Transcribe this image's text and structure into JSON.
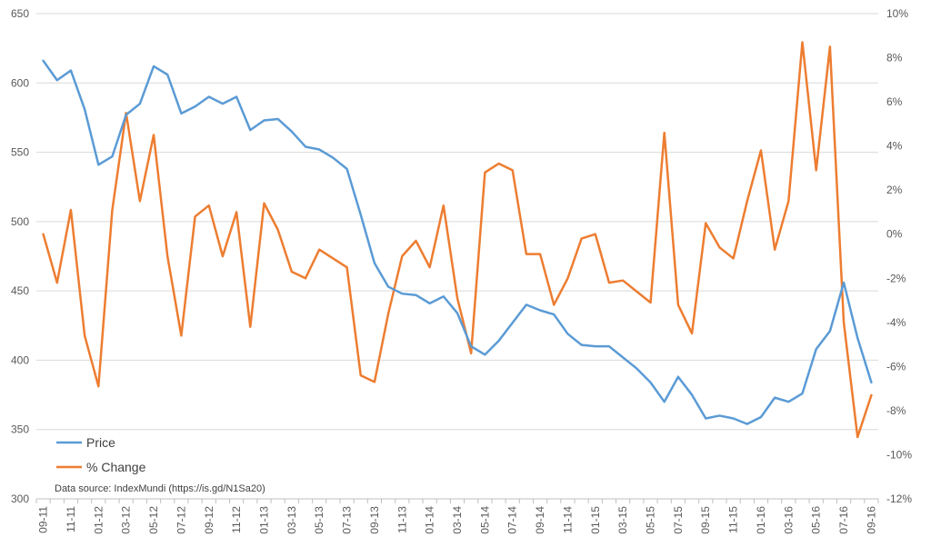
{
  "chart_data": {
    "type": "line",
    "title": "",
    "xlabel": "",
    "ylabel": "",
    "y2label": "",
    "ylim": [
      300,
      650
    ],
    "yticks": [
      300,
      350,
      400,
      450,
      500,
      550,
      600,
      650
    ],
    "y2lim": [
      -12,
      10
    ],
    "y2ticks": [
      "-12%",
      "-10%",
      "-8%",
      "-6%",
      "-4%",
      "-2%",
      "0%",
      "2%",
      "4%",
      "6%",
      "8%",
      "10%"
    ],
    "y2tick_values": [
      -12,
      -10,
      -8,
      -6,
      -4,
      -2,
      0,
      2,
      4,
      6,
      8,
      10
    ],
    "grid": "horizontal",
    "legend_position": "bottom-left",
    "colors": {
      "price": "#5b9bd5",
      "change": "#ed7d31",
      "grid": "#d9d9d9",
      "axis": "#bfbfbf"
    },
    "x": [
      "09-11",
      "10-11",
      "11-11",
      "12-11",
      "01-12",
      "02-12",
      "03-12",
      "04-12",
      "05-12",
      "06-12",
      "07-12",
      "08-12",
      "09-12",
      "10-12",
      "11-12",
      "12-12",
      "01-13",
      "02-13",
      "03-13",
      "04-13",
      "05-13",
      "06-13",
      "07-13",
      "08-13",
      "09-13",
      "10-13",
      "11-13",
      "12-13",
      "01-14",
      "02-14",
      "03-14",
      "04-14",
      "05-14",
      "06-14",
      "07-14",
      "08-14",
      "09-14",
      "10-14",
      "11-14",
      "12-14",
      "01-15",
      "02-15",
      "03-15",
      "04-15",
      "05-15",
      "06-15",
      "07-15",
      "08-15",
      "09-15",
      "10-15",
      "11-15",
      "12-15",
      "01-16",
      "02-16",
      "03-16",
      "04-16",
      "05-16",
      "06-16",
      "07-16",
      "08-16",
      "09-16"
    ],
    "xtick_labels": [
      "09-11",
      "11-11",
      "01-12",
      "03-12",
      "05-12",
      "07-12",
      "09-12",
      "11-12",
      "01-13",
      "03-13",
      "05-13",
      "07-13",
      "09-13",
      "11-13",
      "01-14",
      "03-14",
      "05-14",
      "07-14",
      "09-14",
      "11-14",
      "01-15",
      "03-15",
      "05-15",
      "07-15",
      "09-15",
      "11-15",
      "01-16",
      "03-16",
      "05-16",
      "07-16",
      "09-16"
    ],
    "series": [
      {
        "name": "Price",
        "axis": "left",
        "values": [
          616,
          602,
          609,
          581,
          541,
          547,
          577,
          585,
          612,
          606,
          578,
          583,
          590,
          585,
          590,
          566,
          573,
          574,
          565,
          554,
          552,
          546,
          538,
          505,
          470,
          453,
          448,
          447,
          441,
          446,
          434,
          410,
          404,
          414,
          427,
          440,
          436,
          433,
          419,
          411,
          410,
          410,
          402,
          394,
          384,
          370,
          388,
          375,
          358,
          360,
          358,
          354,
          359,
          373,
          370,
          376,
          408,
          421,
          456,
          416,
          384
        ]
      },
      {
        "name": "% Change",
        "axis": "right",
        "values": [
          0,
          -2.2,
          1.1,
          -4.6,
          -6.9,
          1.1,
          5.5,
          1.5,
          4.5,
          -1.0,
          -4.6,
          0.8,
          1.3,
          -1.0,
          1.0,
          -4.2,
          1.4,
          0.2,
          -1.7,
          -2.0,
          -0.7,
          -1.1,
          -1.5,
          -6.4,
          -6.7,
          -3.6,
          -1.0,
          -0.3,
          -1.5,
          1.3,
          -2.9,
          -5.4,
          2.8,
          3.2,
          2.9,
          -0.9,
          -0.9,
          -3.2,
          -2.0,
          -0.2,
          0,
          -2.2,
          -2.1,
          -2.6,
          -3.1,
          4.6,
          -3.2,
          -4.5,
          0.5,
          -0.6,
          -1.1,
          1.5,
          3.8,
          -0.7,
          1.5,
          8.7,
          2.9,
          8.5,
          -4.0,
          -9.2,
          -7.3
        ]
      }
    ],
    "annotation": "Data source: IndexMundi (https://is.gd/N1Sa20)"
  }
}
